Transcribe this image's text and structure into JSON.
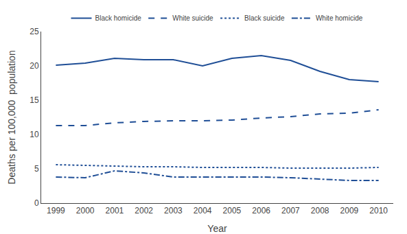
{
  "chart_data": {
    "type": "line",
    "x": [
      1999,
      2000,
      2001,
      2002,
      2003,
      2004,
      2005,
      2006,
      2007,
      2008,
      2009,
      2010
    ],
    "series": [
      {
        "name": "Black homicide",
        "color": "#1f4e96",
        "line_style": "solid",
        "values": [
          20.1,
          20.4,
          21.1,
          20.9,
          20.9,
          20.0,
          21.1,
          21.5,
          20.8,
          19.2,
          18.0,
          17.7
        ]
      },
      {
        "name": "White suicide",
        "color": "#1f4e96",
        "line_style": "dash",
        "values": [
          11.3,
          11.3,
          11.7,
          11.9,
          12.0,
          12.0,
          12.1,
          12.4,
          12.6,
          13.0,
          13.1,
          13.6
        ]
      },
      {
        "name": "Black suicide",
        "color": "#1f4e96",
        "line_style": "dot",
        "values": [
          5.6,
          5.5,
          5.4,
          5.3,
          5.3,
          5.2,
          5.2,
          5.2,
          5.1,
          5.1,
          5.1,
          5.2
        ]
      },
      {
        "name": "White homicide",
        "color": "#1f4e96",
        "line_style": "dashdot",
        "values": [
          3.8,
          3.7,
          4.7,
          4.4,
          3.8,
          3.8,
          3.8,
          3.8,
          3.7,
          3.5,
          3.3,
          3.3
        ]
      }
    ],
    "xlabel": "Year",
    "ylabel": "Deaths per 100,000  population",
    "xlim": [
      1998.5,
      2010.5
    ],
    "xticks": [
      1999,
      2000,
      2001,
      2002,
      2003,
      2004,
      2005,
      2006,
      2007,
      2008,
      2009,
      2010
    ],
    "ylim": [
      0,
      25
    ],
    "yticks": [
      0,
      5,
      10,
      15,
      20,
      25
    ],
    "grid": false,
    "legend": "top"
  }
}
